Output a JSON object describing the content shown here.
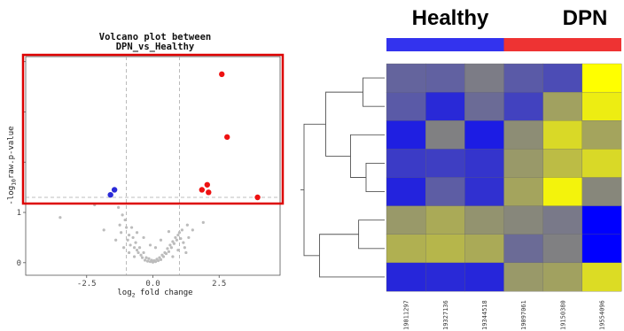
{
  "chart_data": [
    {
      "type": "scatter",
      "title_line1": "Volcano plot between",
      "title_line2": "DPN_vs_Healthy",
      "xlabel_base": "log",
      "xlabel_sub": "2",
      "xlabel_rest": " fold change",
      "ylabel_pre": "-log",
      "ylabel_sub": "10",
      "ylabel_rest": "raw.p-value",
      "xlim": [
        -4.8,
        4.8
      ],
      "ylim": [
        -0.25,
        4.1
      ],
      "x_ticks": [
        {
          "value": -2.5,
          "label": "-2.5"
        },
        {
          "value": 0,
          "label": "0.0"
        },
        {
          "value": 2.5,
          "label": "2.5"
        }
      ],
      "y_ticks": [
        {
          "value": 0,
          "label": "0"
        },
        {
          "value": 1,
          "label": "1"
        },
        {
          "value": 2,
          "label": ""
        },
        {
          "value": 3,
          "label": ""
        },
        {
          "value": 4,
          "label": ""
        }
      ],
      "fc_thresholds": [
        -1,
        1
      ],
      "p_threshold": 1.3,
      "colors": {
        "up": "#ee1111",
        "down": "#2a2ad8",
        "ns": "#bcbcbc",
        "highlight_box": "#dd0000"
      },
      "series": [
        {
          "class": "up",
          "points": [
            [
              2.6,
              3.75
            ],
            [
              2.8,
              2.5
            ],
            [
              1.85,
              1.45
            ],
            [
              2.05,
              1.55
            ],
            [
              2.1,
              1.4
            ],
            [
              3.95,
              1.3
            ]
          ]
        },
        {
          "class": "down",
          "points": [
            [
              -1.45,
              1.45
            ],
            [
              -1.6,
              1.35
            ]
          ]
        },
        {
          "class": "ns",
          "points": [
            [
              -3.5,
              0.9
            ],
            [
              -2.2,
              1.15
            ],
            [
              -1.3,
              1.1
            ],
            [
              -1.15,
              0.95
            ],
            [
              -1.05,
              0.85
            ],
            [
              -1.25,
              0.75
            ],
            [
              -1.2,
              0.6
            ],
            [
              -1.0,
              0.7
            ],
            [
              -0.9,
              0.55
            ],
            [
              -0.95,
              0.45
            ],
            [
              -0.85,
              0.35
            ],
            [
              -0.75,
              0.5
            ],
            [
              -0.7,
              0.3
            ],
            [
              -0.65,
              0.4
            ],
            [
              -0.6,
              0.25
            ],
            [
              -0.55,
              0.2
            ],
            [
              -0.5,
              0.3
            ],
            [
              -0.45,
              0.15
            ],
            [
              -0.4,
              0.1
            ],
            [
              -0.35,
              0.2
            ],
            [
              -0.3,
              0.05
            ],
            [
              -0.25,
              0.1
            ],
            [
              -0.2,
              0.03
            ],
            [
              -0.15,
              0.08
            ],
            [
              -0.1,
              0.02
            ],
            [
              -0.05,
              0.05
            ],
            [
              0.0,
              0.01
            ],
            [
              0.05,
              0.04
            ],
            [
              0.1,
              0.02
            ],
            [
              0.15,
              0.07
            ],
            [
              0.2,
              0.04
            ],
            [
              0.25,
              0.1
            ],
            [
              0.3,
              0.06
            ],
            [
              0.35,
              0.15
            ],
            [
              0.4,
              0.12
            ],
            [
              0.45,
              0.2
            ],
            [
              0.5,
              0.18
            ],
            [
              0.55,
              0.28
            ],
            [
              0.6,
              0.22
            ],
            [
              0.65,
              0.35
            ],
            [
              0.7,
              0.3
            ],
            [
              0.75,
              0.42
            ],
            [
              0.8,
              0.38
            ],
            [
              0.85,
              0.5
            ],
            [
              0.9,
              0.45
            ],
            [
              0.95,
              0.55
            ],
            [
              1.0,
              0.6
            ],
            [
              1.05,
              0.48
            ],
            [
              1.1,
              0.65
            ],
            [
              1.15,
              0.4
            ],
            [
              1.2,
              0.3
            ],
            [
              1.25,
              0.2
            ],
            [
              0.6,
              0.62
            ],
            [
              -0.6,
              0.6
            ],
            [
              -0.8,
              0.7
            ],
            [
              1.35,
              0.5
            ],
            [
              1.5,
              0.65
            ],
            [
              -1.4,
              0.45
            ],
            [
              -0.35,
              0.5
            ],
            [
              0.3,
              0.45
            ],
            [
              -1.1,
              0.3
            ],
            [
              1.3,
              0.75
            ],
            [
              -0.7,
              0.12
            ],
            [
              0.75,
              0.12
            ],
            [
              -0.9,
              0.2
            ],
            [
              0.95,
              0.25
            ],
            [
              0.1,
              0.3
            ],
            [
              -0.1,
              0.35
            ],
            [
              1.9,
              0.8
            ],
            [
              -1.85,
              0.65
            ]
          ]
        }
      ]
    },
    {
      "type": "heatmap",
      "group_labels": [
        "Healthy",
        "DPN"
      ],
      "group_colors": [
        "#3333ee",
        "#ee3333"
      ],
      "group_sizes": [
        3,
        3
      ],
      "columns": [
        "19011297",
        "19327136",
        "19344518",
        "19097061",
        "19150380",
        "19554096"
      ],
      "color_scale": {
        "low": "#0000ff",
        "mid": "#8a8a78",
        "high": "#ffff00",
        "range": [
          -2,
          2
        ]
      },
      "values": [
        [
          -0.55,
          -0.6,
          -0.2,
          -0.7,
          -0.9,
          2.0
        ],
        [
          -0.7,
          -1.4,
          -0.45,
          -1.05,
          0.4,
          1.7
        ],
        [
          -1.55,
          -0.15,
          -1.6,
          0.05,
          1.35,
          0.45
        ],
        [
          -1.15,
          -1.1,
          -1.25,
          0.25,
          0.85,
          1.35
        ],
        [
          -1.5,
          -0.65,
          -1.3,
          0.45,
          1.8,
          -0.05
        ],
        [
          0.25,
          0.55,
          0.15,
          -0.05,
          -0.25,
          -2.0
        ],
        [
          0.65,
          0.75,
          0.55,
          -0.45,
          -0.15,
          -2.0
        ],
        [
          -1.45,
          -1.4,
          -1.45,
          0.25,
          0.4,
          1.4
        ]
      ],
      "row_dendrogram": {
        "leaf_order": [
          0,
          1,
          2,
          3,
          4,
          5,
          6,
          7
        ],
        "merges": [
          {
            "a": 0,
            "b": 1,
            "h": 0.35
          },
          {
            "a": 3,
            "b": 4,
            "h": 0.3
          },
          {
            "a": 2,
            "b": 9,
            "h": 0.55
          },
          {
            "a": 8,
            "b": 10,
            "h": 0.95
          },
          {
            "a": 5,
            "b": 6,
            "h": 0.42
          },
          {
            "a": 12,
            "b": 7,
            "h": 1.05
          },
          {
            "a": 11,
            "b": 13,
            "h": 1.3
          }
        ]
      }
    }
  ]
}
